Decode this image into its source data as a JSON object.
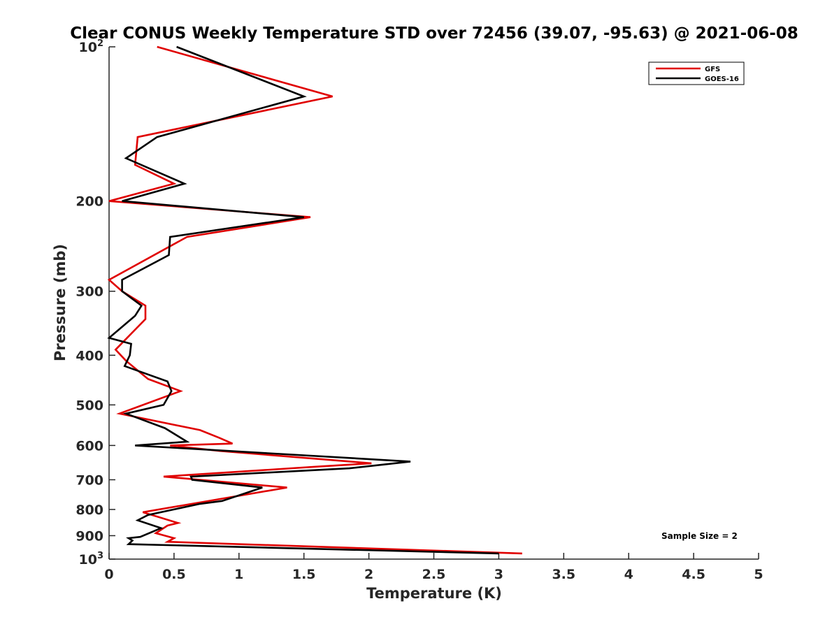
{
  "chart_data": {
    "type": "line",
    "title": "Clear CONUS Weekly Temperature STD over 72456 (39.07, -95.63) @ 2021-06-08",
    "xlabel": "Temperature (K)",
    "ylabel": "Pressure (mb)",
    "xlim": [
      0,
      5
    ],
    "ylim": [
      100,
      1000
    ],
    "y_scale": "log",
    "y_reversed": true,
    "grid": false,
    "legend_position": "top-right",
    "x_ticks": [
      "0",
      "0.5",
      "1",
      "1.5",
      "2",
      "2.5",
      "3",
      "3.5",
      "4",
      "4.5",
      "5"
    ],
    "y_ticks": [
      {
        "value": 100,
        "base": "10",
        "exp": "2"
      },
      {
        "value": 200,
        "label": "200"
      },
      {
        "value": 300,
        "label": "300"
      },
      {
        "value": 400,
        "label": "400"
      },
      {
        "value": 500,
        "label": "500"
      },
      {
        "value": 600,
        "label": "600"
      },
      {
        "value": 700,
        "label": "700"
      },
      {
        "value": 800,
        "label": "800"
      },
      {
        "value": 900,
        "label": "900"
      },
      {
        "value": 1000,
        "base": "10",
        "exp": "3"
      }
    ],
    "annotation": "Sample Size = 2",
    "series": [
      {
        "name": "GFS",
        "color": "#e00000",
        "points": [
          [
            0.37,
            100
          ],
          [
            1.72,
            125
          ],
          [
            0.22,
            150
          ],
          [
            0.2,
            170
          ],
          [
            0.5,
            185
          ],
          [
            0.0,
            200
          ],
          [
            1.55,
            215
          ],
          [
            0.6,
            235
          ],
          [
            0.0,
            285
          ],
          [
            0.1,
            300
          ],
          [
            0.28,
            320
          ],
          [
            0.28,
            340
          ],
          [
            0.05,
            390
          ],
          [
            0.13,
            410
          ],
          [
            0.3,
            445
          ],
          [
            0.55,
            470
          ],
          [
            0.08,
            520
          ],
          [
            0.7,
            560
          ],
          [
            0.85,
            580
          ],
          [
            0.95,
            595
          ],
          [
            0.47,
            600
          ],
          [
            0.85,
            615
          ],
          [
            2.02,
            650
          ],
          [
            1.6,
            660
          ],
          [
            0.42,
            690
          ],
          [
            1.37,
            725
          ],
          [
            0.26,
            810
          ],
          [
            0.53,
            850
          ],
          [
            0.45,
            860
          ],
          [
            0.36,
            890
          ],
          [
            0.5,
            910
          ],
          [
            0.45,
            925
          ],
          [
            3.18,
            975
          ]
        ]
      },
      {
        "name": "GOES-16",
        "color": "#000000",
        "points": [
          [
            0.52,
            100
          ],
          [
            1.5,
            125
          ],
          [
            0.37,
            150
          ],
          [
            0.13,
            165
          ],
          [
            0.58,
            185
          ],
          [
            0.1,
            200
          ],
          [
            1.5,
            215
          ],
          [
            0.47,
            235
          ],
          [
            0.46,
            255
          ],
          [
            0.1,
            285
          ],
          [
            0.1,
            300
          ],
          [
            0.25,
            320
          ],
          [
            0.2,
            335
          ],
          [
            0.0,
            370
          ],
          [
            0.17,
            380
          ],
          [
            0.16,
            400
          ],
          [
            0.12,
            420
          ],
          [
            0.45,
            450
          ],
          [
            0.48,
            470
          ],
          [
            0.42,
            500
          ],
          [
            0.13,
            520
          ],
          [
            0.43,
            555
          ],
          [
            0.6,
            590
          ],
          [
            0.2,
            600
          ],
          [
            2.32,
            645
          ],
          [
            1.85,
            665
          ],
          [
            0.63,
            690
          ],
          [
            0.64,
            700
          ],
          [
            1.18,
            725
          ],
          [
            0.87,
            770
          ],
          [
            0.7,
            780
          ],
          [
            0.3,
            820
          ],
          [
            0.22,
            840
          ],
          [
            0.4,
            870
          ],
          [
            0.24,
            905
          ],
          [
            0.15,
            910
          ],
          [
            0.18,
            920
          ],
          [
            0.15,
            935
          ],
          [
            3.0,
            975
          ]
        ]
      }
    ]
  }
}
